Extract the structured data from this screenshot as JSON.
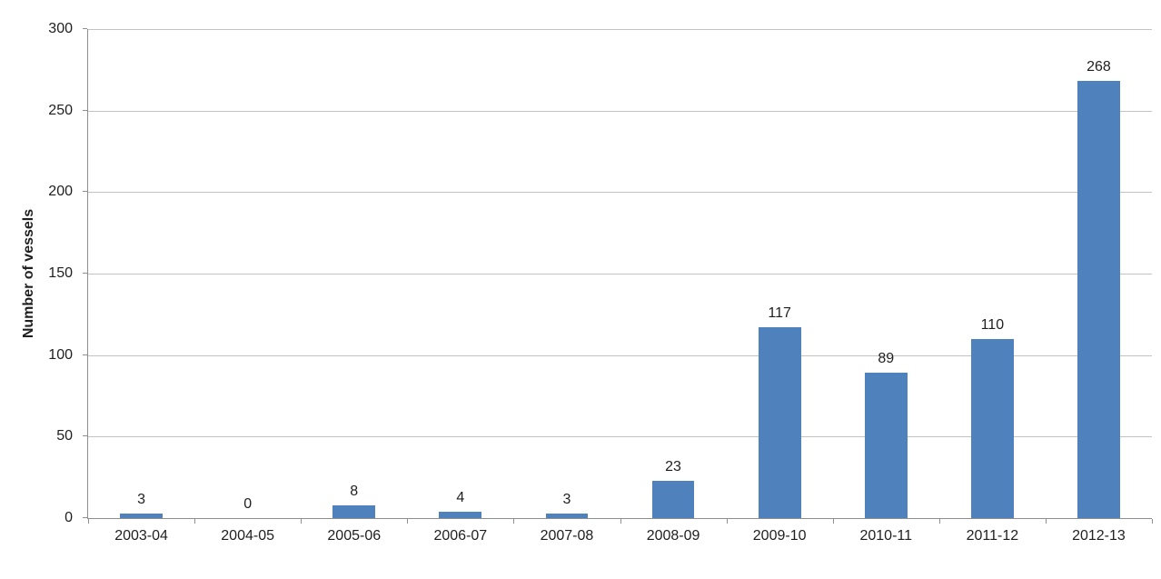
{
  "chart_data": {
    "type": "bar",
    "title": "",
    "categories": [
      "2003-04",
      "2004-05",
      "2005-06",
      "2006-07",
      "2007-08",
      "2008-09",
      "2009-10",
      "2010-11",
      "2011-12",
      "2012-13"
    ],
    "values": [
      3,
      0,
      8,
      4,
      3,
      23,
      117,
      89,
      110,
      268
    ],
    "xlabel": "",
    "ylabel": "Number of vessels",
    "ylim": [
      0,
      300
    ],
    "yticks": [
      0,
      50,
      100,
      150,
      200,
      250,
      300
    ],
    "grid": "horizontal",
    "legend": "none",
    "data_labels": true,
    "colors": {
      "bar": "#4F81BD",
      "gridline": "#C3C3C3",
      "axis": "#8E8E8E",
      "label": "#1F1F1F",
      "background": "#FFFFFF"
    }
  }
}
